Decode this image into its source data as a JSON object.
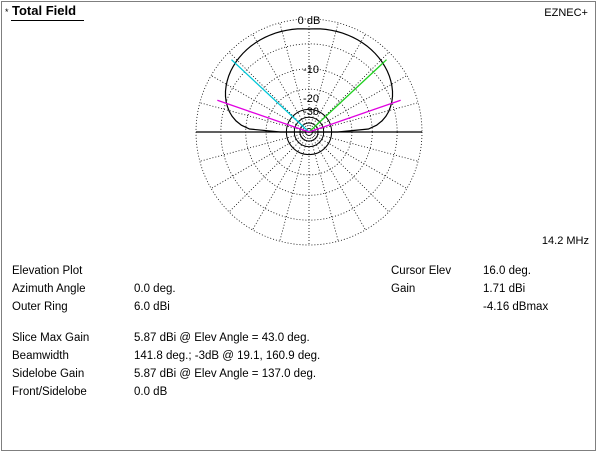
{
  "header": {
    "star": "*",
    "title": "Total Field",
    "brand": "EZNEC+"
  },
  "plot": {
    "ring_labels": [
      "0 dB",
      "-10",
      "-20",
      "-30"
    ],
    "frequency": "14.2 MHz",
    "colors": {
      "pattern": "#000000",
      "cyan_line": "#00c8d8",
      "green_line": "#20d020",
      "magenta_line": "#e000e0",
      "grid": "#000000"
    }
  },
  "info_left": {
    "rows": [
      {
        "label": "Elevation Plot",
        "value": ""
      },
      {
        "label": "Azimuth Angle",
        "value": "0.0 deg."
      },
      {
        "label": "Outer Ring",
        "value": "6.0 dBi"
      }
    ]
  },
  "info_right": {
    "rows": [
      {
        "label": "Cursor Elev",
        "value": "16.0 deg."
      },
      {
        "label": "Gain",
        "value": "1.71 dBi"
      },
      {
        "label": "",
        "value": "-4.16 dBmax"
      }
    ]
  },
  "info_bottom": {
    "rows": [
      {
        "label": "Slice Max Gain",
        "value": "5.87 dBi @ Elev Angle = 43.0 deg."
      },
      {
        "label": "Beamwidth",
        "value": "141.8 deg.; -3dB @ 19.1, 160.9 deg."
      },
      {
        "label": "Sidelobe Gain",
        "value": "5.87 dBi @ Elev Angle = 137.0 deg."
      },
      {
        "label": "Front/Sidelobe",
        "value": "0.0 dB"
      }
    ]
  }
}
